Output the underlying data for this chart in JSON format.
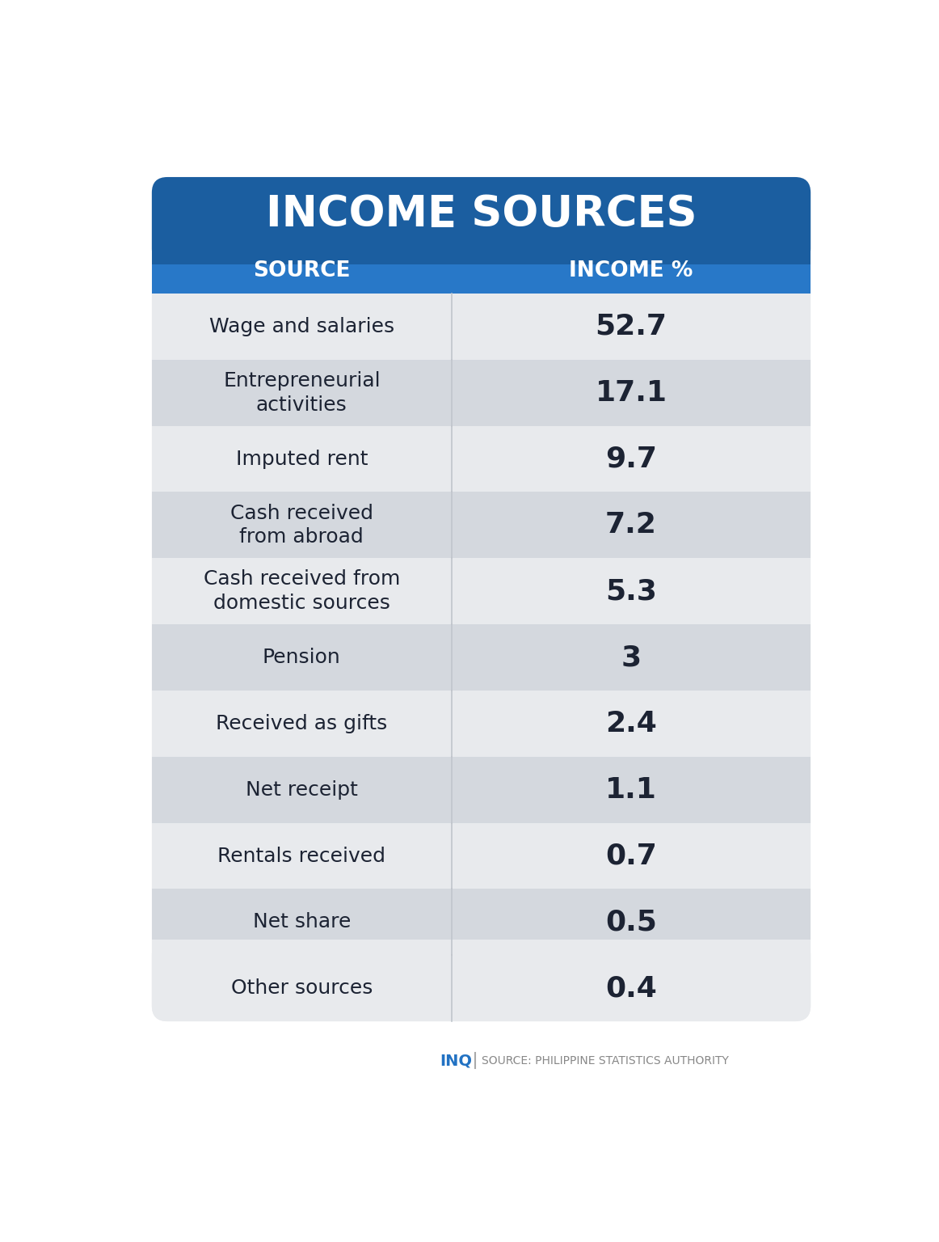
{
  "title": "INCOME SOURCES",
  "col1_header": "SOURCE",
  "col2_header": "INCOME %",
  "rows": [
    {
      "source": "Wage and salaries",
      "value": "52.7"
    },
    {
      "source": "Entrepreneurial\nactivities",
      "value": "17.1"
    },
    {
      "source": "Imputed rent",
      "value": "9.7"
    },
    {
      "source": "Cash received\nfrom abroad",
      "value": "7.2"
    },
    {
      "source": "Cash received from\ndomestic sources",
      "value": "5.3"
    },
    {
      "source": "Pension",
      "value": "3"
    },
    {
      "source": "Received as gifts",
      "value": "2.4"
    },
    {
      "source": "Net receipt",
      "value": "1.1"
    },
    {
      "source": "Rentals received",
      "value": "0.7"
    },
    {
      "source": "Net share",
      "value": "0.5"
    },
    {
      "source": "Other sources",
      "value": "0.4"
    }
  ],
  "title_bg_color": "#1b5ea0",
  "header_bg_color": "#2878c8",
  "row_color_light": "#e8eaed",
  "row_color_dark": "#d4d8de",
  "title_text_color": "#ffffff",
  "header_text_color": "#ffffff",
  "source_text_color": "#1c2333",
  "value_text_color": "#1c2333",
  "footer_inq_color": "#2272c3",
  "footer_source_color": "#888888",
  "bg_color": "#ffffff",
  "divider_color": "#c0c5cc"
}
